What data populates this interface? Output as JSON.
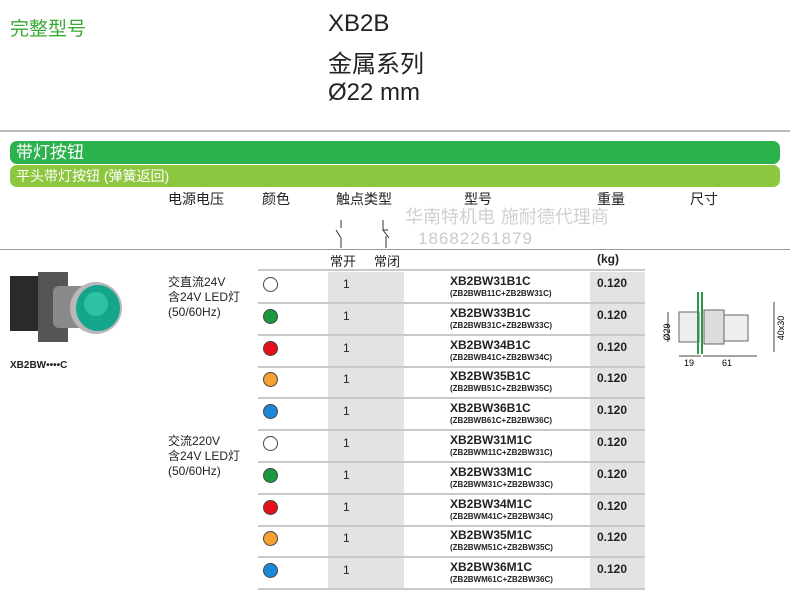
{
  "section_label": "完整型号",
  "title": {
    "line1": "XB2B",
    "line2": "金属系列",
    "line3": "Ø22 mm"
  },
  "bar1": "带灯按钮",
  "bar2": "平头带灯按钮 (弹簧返回)",
  "headers": {
    "voltage": "电源电压",
    "color": "颜色",
    "contact": "触点类型",
    "model": "型号",
    "weight": "重量",
    "size": "尺寸",
    "no": "常开",
    "nc": "常闭",
    "unit": "(kg)"
  },
  "watermark": {
    "line1": "华南特机电 施耐德代理商",
    "line2": "18682261879"
  },
  "product_caption": "XB2BW••••C",
  "groups": [
    {
      "voltage": [
        "交直流24V",
        "含24V LED灯",
        "(50/60Hz)"
      ]
    },
    {
      "voltage": [
        "交流220V",
        "含24V LED灯",
        "(50/60Hz)"
      ]
    }
  ],
  "rows": [
    {
      "color": "#ffffff",
      "contacts": "1",
      "model": "XB2BW31B1C",
      "parts": "(ZB2BWB11C+ZB2BW31C)",
      "weight": "0.120"
    },
    {
      "color": "#1a9a3c",
      "contacts": "1",
      "model": "XB2BW33B1C",
      "parts": "(ZB2BWB31C+ZB2BW33C)",
      "weight": "0.120"
    },
    {
      "color": "#e3101b",
      "contacts": "1",
      "model": "XB2BW34B1C",
      "parts": "(ZB2BWB41C+ZB2BW34C)",
      "weight": "0.120"
    },
    {
      "color": "#f5a030",
      "contacts": "1",
      "model": "XB2BW35B1C",
      "parts": "(ZB2BWB51C+ZB2BW35C)",
      "weight": "0.120"
    },
    {
      "color": "#1e88d8",
      "contacts": "1",
      "model": "XB2BW36B1C",
      "parts": "(ZB2BWB61C+ZB2BW36C)",
      "weight": "0.120"
    },
    {
      "color": "#ffffff",
      "contacts": "1",
      "model": "XB2BW31M1C",
      "parts": "(ZB2BWM11C+ZB2BW31C)",
      "weight": "0.120"
    },
    {
      "color": "#1a9a3c",
      "contacts": "1",
      "model": "XB2BW33M1C",
      "parts": "(ZB2BWM31C+ZB2BW33C)",
      "weight": "0.120"
    },
    {
      "color": "#e3101b",
      "contacts": "1",
      "model": "XB2BW34M1C",
      "parts": "(ZB2BWM41C+ZB2BW34C)",
      "weight": "0.120"
    },
    {
      "color": "#f5a030",
      "contacts": "1",
      "model": "XB2BW35M1C",
      "parts": "(ZB2BWM51C+ZB2BW35C)",
      "weight": "0.120"
    },
    {
      "color": "#1e88d8",
      "contacts": "1",
      "model": "XB2BW36M1C",
      "parts": "(ZB2BWM61C+ZB2BW36C)",
      "weight": "0.120"
    }
  ],
  "dimensions": {
    "diameter": "Ø29",
    "front": "19",
    "depth": "61",
    "body": "40x30"
  }
}
